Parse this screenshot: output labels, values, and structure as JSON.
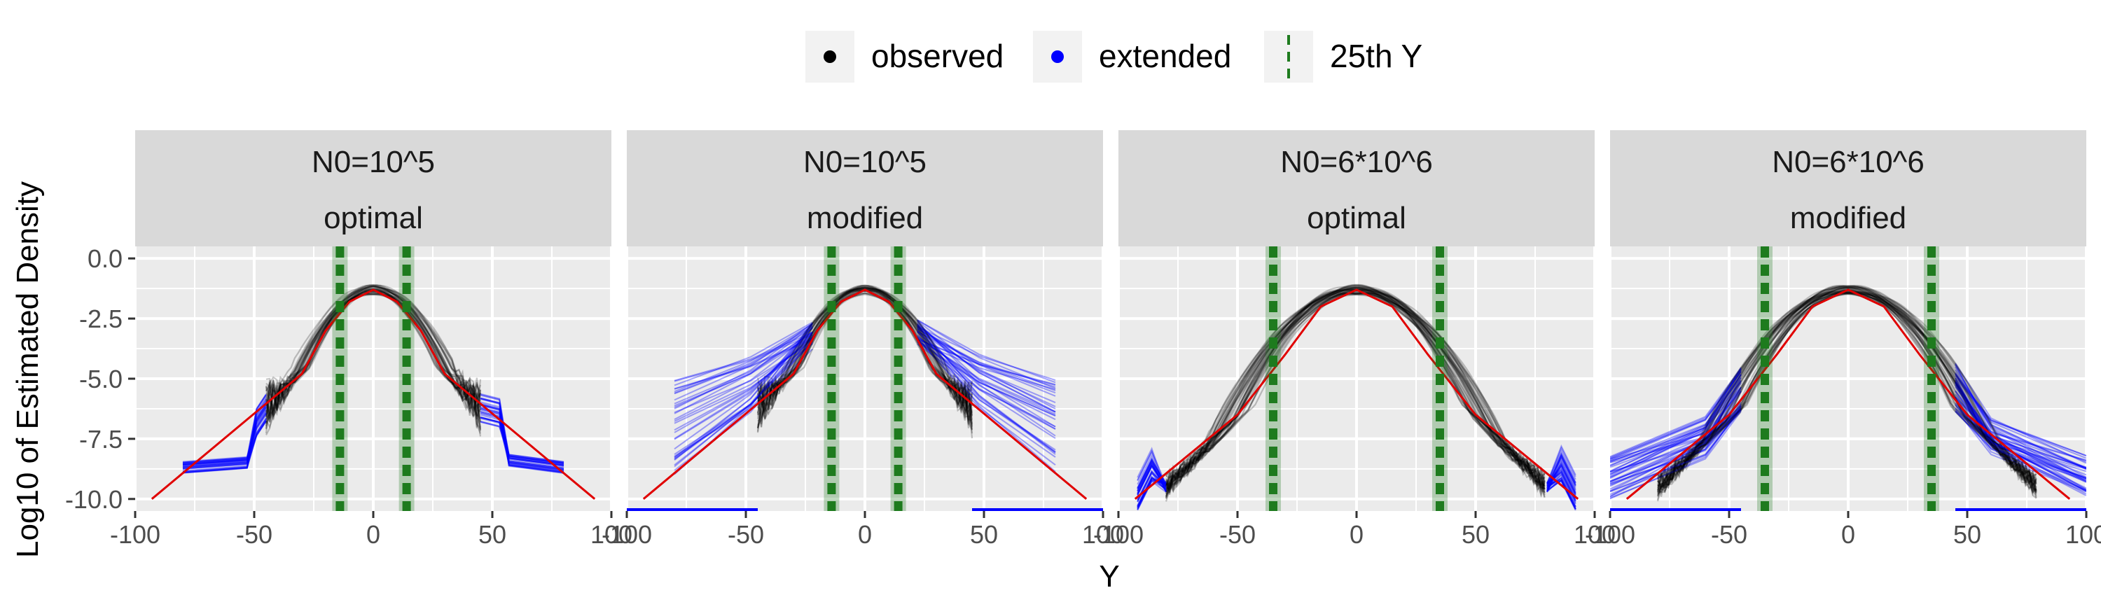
{
  "legend": {
    "position": "top",
    "entries": [
      {
        "key": "observed",
        "label": "observed",
        "color": "#000000",
        "glyph": "point"
      },
      {
        "key": "extended",
        "label": "extended",
        "color": "#0000FF",
        "glyph": "point"
      },
      {
        "key": "q25",
        "label": "25th Y",
        "color": "#1E7B1E",
        "glyph": "dashed-vline"
      }
    ]
  },
  "chart_data": {
    "type": "line",
    "xlabel": "Y",
    "ylabel": "Log10 of Estimated Density",
    "xlim": [
      -100,
      100
    ],
    "ylim": [
      -10.5,
      0.5
    ],
    "x_ticks": [
      -100,
      -50,
      0,
      50,
      100
    ],
    "x_tick_labels": [
      "-100",
      "-50",
      "0",
      "50",
      "100"
    ],
    "y_ticks": [
      0.0,
      -2.5,
      -5.0,
      -7.5,
      -10.0
    ],
    "y_tick_labels": [
      "0.0",
      "-2.5",
      "-5.0",
      "-7.5",
      "-10.0"
    ],
    "grid": true,
    "colors": {
      "observed": "#000000",
      "extended": "#0000FF",
      "true_density": "#E00000",
      "quantile_line": "#1E7B1E",
      "panel_bg": "#EBEBEB",
      "strip_bg": "#D9D9D9",
      "grid": "#FFFFFF"
    },
    "panels": [
      {
        "strip": [
          "N0=10^5",
          "optimal"
        ],
        "q25": [
          -14,
          14
        ],
        "observed_range": [
          -45,
          45
        ],
        "extension": "flat",
        "extension_level": -8.7,
        "extension_end": 80,
        "true_density": [
          [
            -93,
            -10.0
          ],
          [
            -30,
            -4.8
          ],
          [
            -20,
            -3.0
          ],
          [
            -10,
            -1.8
          ],
          [
            0,
            -1.3
          ],
          [
            10,
            -1.8
          ],
          [
            20,
            -3.0
          ],
          [
            30,
            -4.8
          ],
          [
            93,
            -10.0
          ]
        ]
      },
      {
        "strip": [
          "N0=10^5",
          "modified"
        ],
        "q25": [
          -14,
          14
        ],
        "observed_range": [
          -45,
          45
        ],
        "extension": "fan",
        "extension_end": 80,
        "extension_range_at_end": [
          -9.0,
          -5.0
        ],
        "true_density": [
          [
            -93,
            -10.0
          ],
          [
            -30,
            -4.8
          ],
          [
            -20,
            -3.0
          ],
          [
            -10,
            -1.8
          ],
          [
            0,
            -1.3
          ],
          [
            10,
            -1.8
          ],
          [
            20,
            -3.0
          ],
          [
            30,
            -4.8
          ],
          [
            93,
            -10.0
          ]
        ]
      },
      {
        "strip": [
          "N0=6*10^6",
          "optimal"
        ],
        "q25": [
          -35,
          35
        ],
        "observed_range": [
          -80,
          80
        ],
        "extension": "tail",
        "extension_end": 100,
        "true_density": [
          [
            -93,
            -10.0
          ],
          [
            -50,
            -6.5
          ],
          [
            -30,
            -4.0
          ],
          [
            -15,
            -2.0
          ],
          [
            0,
            -1.3
          ],
          [
            15,
            -2.0
          ],
          [
            30,
            -4.0
          ],
          [
            50,
            -6.5
          ],
          [
            93,
            -10.0
          ]
        ]
      },
      {
        "strip": [
          "N0=6*10^6",
          "modified"
        ],
        "q25": [
          -35,
          35
        ],
        "observed_range": [
          -80,
          80
        ],
        "extension": "fan",
        "extension_end": 100,
        "extension_range_at_end": [
          -10.0,
          -8.2
        ],
        "true_density": [
          [
            -93,
            -10.0
          ],
          [
            -50,
            -6.5
          ],
          [
            -30,
            -4.0
          ],
          [
            -15,
            -2.0
          ],
          [
            0,
            -1.3
          ],
          [
            15,
            -2.0
          ],
          [
            30,
            -4.0
          ],
          [
            50,
            -6.5
          ],
          [
            93,
            -10.0
          ]
        ]
      }
    ]
  }
}
